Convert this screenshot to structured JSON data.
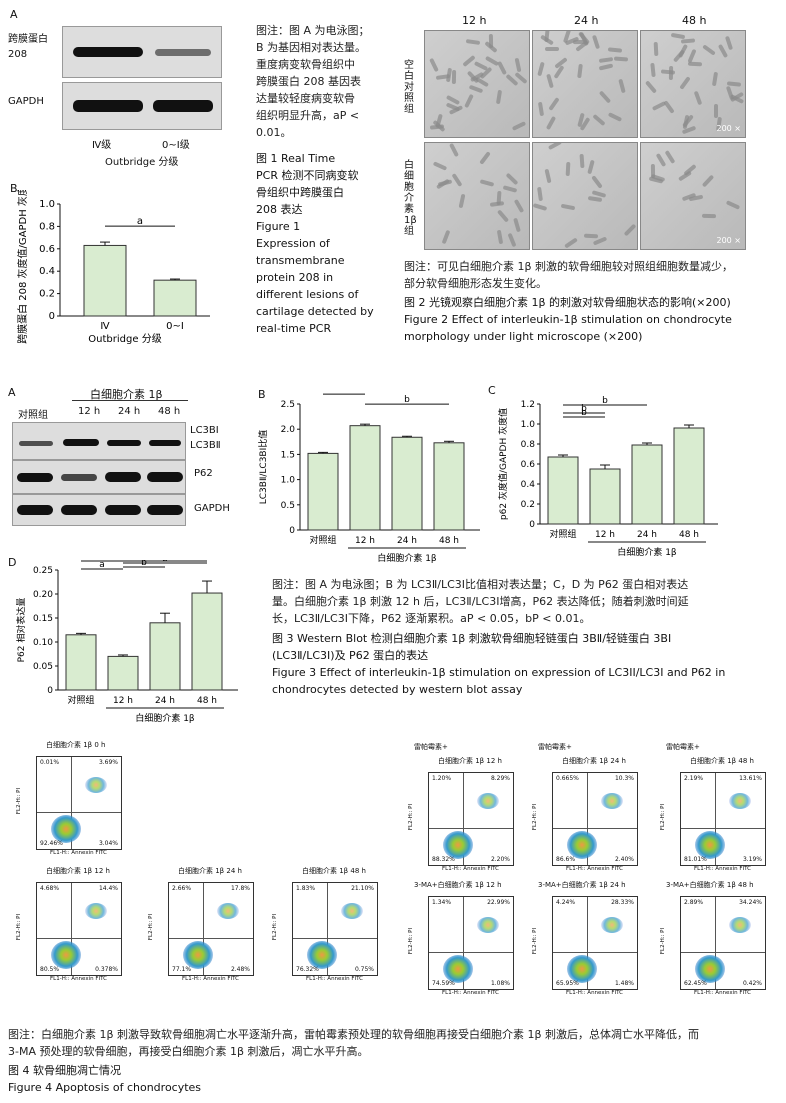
{
  "fig1": {
    "panel_a": "A",
    "panel_b": "B",
    "blot_rows": [
      "跨膜蛋白\n208",
      "GAPDH"
    ],
    "blot_cols": [
      "Ⅳ级",
      "0~Ⅰ级"
    ],
    "blot_xlabel": "Outbridge 分级",
    "note_lines": [
      "图注：图 A 为电泳图；",
      "B 为基因相对表达量。",
      "重度病变软骨组织中",
      "跨膜蛋白 208 基因表",
      "达量较轻度病变软骨",
      "组织明显升高，",
      "0.01。"
    ],
    "note_p": "aP <",
    "title_cn": [
      "图 1   Real Time",
      "PCR 检测不同病变软",
      "骨组织中跨膜蛋白",
      "208 表达"
    ],
    "title_en": [
      "Figure 1",
      "Expression of",
      "transmembrane",
      "protein 208 in",
      "different lesions of",
      "cartilage detected by",
      "real-time PCR"
    ]
  },
  "fig2": {
    "cols": [
      "12 h",
      "24 h",
      "48 h"
    ],
    "rows": [
      "空白对照组",
      "白细胞介素1β组"
    ],
    "scale": "200 ×",
    "note_lines": [
      "图注：可见白细胞介素 1β 刺激的软骨细胞较对照组细胞数量减少，",
      "部分软骨细胞形态发生变化。"
    ],
    "title_cn": "图 2   光镜观察白细胞介素 1β 的刺激对软骨细胞状态的影响(×200)",
    "title_en": [
      "Figure 2    Effect of interleukin-1β stimulation on chondrocyte",
      "morphology under light microscope (×200)"
    ]
  },
  "fig3": {
    "panel_a": "A",
    "panel_b": "B",
    "panel_c": "C",
    "panel_d": "D",
    "blot_group": "白细胞介素 1β",
    "blot_cols": [
      "对照组",
      "12 h",
      "24 h",
      "48 h"
    ],
    "blot_rows": [
      "LC3BⅠ",
      "LC3BⅡ",
      "P62",
      "GAPDH"
    ],
    "note_lines": [
      "图注：图 A 为电泳图；B 为 LC3Ⅱ/LC3Ⅰ比值相对表达量；C，D 为 P62 蛋白相对表达",
      "量。白细胞介素 1β 刺激 12 h 后，LC3Ⅱ/LC3Ⅰ增高，P62 表达降低；随着刺激时间延",
      "长，LC3Ⅱ/LC3Ⅰ下降，P62 逐渐累积。aP < 0.05，bP < 0.01。"
    ],
    "title_cn": [
      "图 3   Western Blot 检测白细胞介素 1β 刺激软骨细胞轻链蛋白 3BⅡ/轻链蛋白 3BⅠ",
      "(LC3Ⅱ/LC3Ⅰ)及 P62 蛋白的表达"
    ],
    "title_en": [
      "Figure 3    Effect of interleukin-1β stimulation on expression of LC3II/LC3I and P62 in",
      "chondrocytes detected by western blot assay"
    ]
  },
  "fig4": {
    "xlabel": "FL1-H:: Annexin FITC",
    "ylabel": "FL2-H:: PI",
    "plots": [
      {
        "title": "白细胞介素 1β 0 h",
        "q": [
          "0.01%",
          "3.69%",
          "92.46%",
          "3.04%"
        ]
      },
      {
        "title": "白细胞介素 1β 12 h",
        "q": [
          "4.68%",
          "14.4%",
          "80.5%",
          "0.378%"
        ]
      },
      {
        "title": "白细胞介素 1β 24 h",
        "q": [
          "2.66%",
          "17.8%",
          "77.1%",
          "2.48%"
        ]
      },
      {
        "title": "白细胞介素 1β 48 h",
        "q": [
          "1.83%",
          "21.10%",
          "76.32%",
          "0.75%"
        ]
      },
      {
        "title_pre": "雷帕霉素+",
        "title": "白细胞介素 1β 12 h",
        "q": [
          "1.20%",
          "8.29%",
          "88.32%",
          "2.20%"
        ]
      },
      {
        "title_pre": "雷帕霉素+",
        "title": "白细胞介素 1β 24 h",
        "q": [
          "0.665%",
          "10.3%",
          "86.6%",
          "2.40%"
        ]
      },
      {
        "title_pre": "雷帕霉素+",
        "title": "白细胞介素 1β 48 h",
        "q": [
          "2.19%",
          "13.61%",
          "81.01%",
          "3.19%"
        ]
      },
      {
        "title": "3-MA+白细胞介素 1β 12 h",
        "q": [
          "1.34%",
          "22.99%",
          "74.59%",
          "1.08%"
        ]
      },
      {
        "title": "3-MA+白细胞介素 1β 24 h",
        "q": [
          "4.24%",
          "28.33%",
          "65.95%",
          "1.48%"
        ]
      },
      {
        "title": "3-MA+白细胞介素 1β 48 h",
        "q": [
          "2.89%",
          "34.24%",
          "62.45%",
          "0.42%"
        ]
      }
    ],
    "note_lines": [
      "图注：白细胞介素 1β 刺激导致软骨细胞凋亡水平逐渐升高，雷帕霉素预处理的软骨细胞再接受白细胞介素 1β 刺激后，总体凋亡水平降低，而",
      "3-MA 预处理的软骨细胞，再接受白细胞介素 1β 刺激后，凋亡水平升高。"
    ],
    "title_cn": "图 4   软骨细胞凋亡情况",
    "title_en": "Figure 4   Apoptosis of chondrocytes"
  },
  "chart_data": [
    {
      "type": "bar",
      "id": "fig1b",
      "categories": [
        "Ⅳ",
        "0~Ⅰ"
      ],
      "values": [
        0.63,
        0.32
      ],
      "errors": [
        0.03,
        0.01
      ],
      "xlabel": "Outbridge 分级",
      "ylabel": "跨膜蛋白 208 灰度值/GAPDH 灰度值",
      "ylim": [
        0,
        1.0
      ],
      "yticks": [
        "0",
        "0.2",
        "0.4",
        "0.6",
        "0.8",
        "1.0"
      ],
      "annotations": [
        "a"
      ]
    },
    {
      "type": "bar",
      "id": "fig3b",
      "categories": [
        "对照组",
        "12 h",
        "24 h",
        "48 h"
      ],
      "values": [
        1.52,
        2.07,
        1.84,
        1.73
      ],
      "errors": [
        0.02,
        0.03,
        0.02,
        0.03
      ],
      "xlabel": "白细胞介素 1β",
      "ylabel": "LC3BⅡ/LC3BⅠ比值",
      "ylim": [
        0,
        2.5
      ],
      "yticks": [
        "0",
        "0.5",
        "1.0",
        "1.5",
        "2.0",
        "2.5"
      ],
      "annotations": [
        "b",
        "b"
      ]
    },
    {
      "type": "bar",
      "id": "fig3c",
      "categories": [
        "对照组",
        "12 h",
        "24 h",
        "48 h"
      ],
      "values": [
        0.67,
        0.55,
        0.79,
        0.96
      ],
      "errors": [
        0.02,
        0.04,
        0.02,
        0.03
      ],
      "xlabel": "白细胞介素 1β",
      "ylabel": "p62 灰度值/GAPDH 灰度值",
      "ylim": [
        0,
        1.2
      ],
      "yticks": [
        "0",
        "0.2",
        "0.4",
        "0.6",
        "0.8",
        "1.0",
        "1.2"
      ],
      "annotations": [
        "b",
        "b",
        "b",
        "b"
      ]
    },
    {
      "type": "bar",
      "id": "fig3d",
      "categories": [
        "对照组",
        "12 h",
        "24 h",
        "48 h"
      ],
      "values": [
        0.115,
        0.07,
        0.14,
        0.202
      ],
      "errors": [
        0.003,
        0.003,
        0.02,
        0.025
      ],
      "xlabel": "白细胞介素 1β",
      "ylabel": "P62 相对表达量",
      "ylim": [
        0,
        0.25
      ],
      "yticks": [
        "0",
        "0.05",
        "0.10",
        "0.15",
        "0.20",
        "0.25"
      ],
      "annotations": [
        "a",
        "b",
        "b",
        "b"
      ]
    }
  ]
}
